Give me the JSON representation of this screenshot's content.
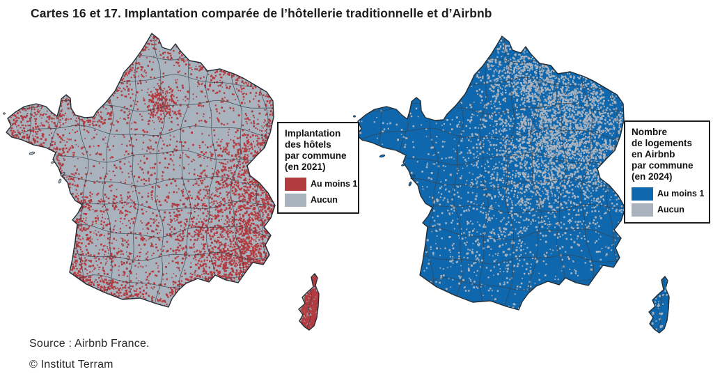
{
  "title": "Cartes 16 et 17. Implantation comparée de l’hôtellerie traditionnelle et d’Airbnb",
  "maps": [
    {
      "legend_title": "Implantation\ndes hôtels\npar commune\n(en 2021)",
      "items": [
        {
          "label": "Au moins 1",
          "color": "#b23b40"
        },
        {
          "label": "Aucun",
          "color": "#a8b3bd"
        }
      ]
    },
    {
      "legend_title": "Nombre\nde logements\nen Airbnb\npar commune\n(en 2024)",
      "items": [
        {
          "label": "Au moins 1",
          "color": "#0f67ae"
        },
        {
          "label": "Aucun",
          "color": "#aab3bd"
        }
      ]
    }
  ],
  "source": "Source : Airbnb France.",
  "copyright": "© Institut Terram",
  "colors": {
    "background": "#ffffff",
    "title_text": "#1d1d1d",
    "footer_text": "#272727",
    "map_border_lines": "#37434d",
    "map_outline": "#232d34",
    "legend_border": "#1c1c1c"
  }
}
